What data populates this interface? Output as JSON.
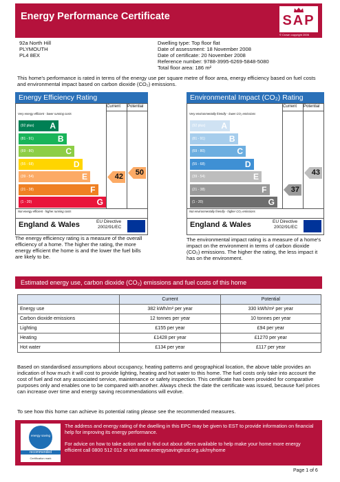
{
  "header": {
    "title": "Energy Performance Certificate",
    "logo": "SAP",
    "copyright": "© Crown copyright 2006"
  },
  "address": [
    "92a North Hill",
    "PLYMOUTH",
    "PL4 8EX"
  ],
  "details": [
    "Dwelling type: Top floor flat",
    "Date of assessment: 18 November 2008",
    "Date of certificate: 20 November 2008",
    "Reference number: 9788-3995-6269-5848-5080",
    "Total floor area: 186 m²"
  ],
  "intro": "This home's performance is rated in terms of the energy use per square metre of floor area, energy efficiency based on fuel costs and environmental impact based on carbon dioxide (CO₂) emissions.",
  "ratings": [
    {
      "title": "Energy Efficiency Rating",
      "col_current": "Current",
      "col_potential": "Potential",
      "top_note": "Very energy efficient - lower running costs",
      "bands": [
        {
          "label": "(92 plus)",
          "letter": "A"
        },
        {
          "label": "(81 - 91)",
          "letter": "B"
        },
        {
          "label": "(69 - 80)",
          "letter": "C"
        },
        {
          "label": "(55 - 68)",
          "letter": "D"
        },
        {
          "label": "(39 - 54)",
          "letter": "E"
        },
        {
          "label": "(21 - 38)",
          "letter": "F"
        },
        {
          "label": "(1 - 20)",
          "letter": "G"
        }
      ],
      "bottom_note": "Not energy efficient - higher running costs",
      "region": "England & Wales",
      "directive": [
        "EU Directive",
        "2002/91/EC"
      ],
      "current": 42,
      "potential": 50,
      "description": "The energy efficiency rating is a measure of the overall efficiency of a home. The higher the rating, the more energy efficient the home is and the lower the fuel bills are likely to be."
    },
    {
      "title": "Environmental Impact (CO₂) Rating",
      "col_current": "Current",
      "col_potential": "Potential",
      "top_note": "Very environmentally friendly - lower CO₂ emissions",
      "bands": [
        {
          "label": "(92 plus)",
          "letter": "A"
        },
        {
          "label": "(81 - 91)",
          "letter": "B"
        },
        {
          "label": "(69 - 80)",
          "letter": "C"
        },
        {
          "label": "(55 - 68)",
          "letter": "D"
        },
        {
          "label": "(39 - 54)",
          "letter": "E"
        },
        {
          "label": "(21 - 38)",
          "letter": "F"
        },
        {
          "label": "(1 - 20)",
          "letter": "G"
        }
      ],
      "bottom_note": "Not environmentally friendly - higher CO₂ emissions",
      "region": "England & Wales",
      "directive": [
        "EU Directive",
        "2002/91/EC"
      ],
      "current": 37,
      "potential": 43,
      "description": "The environmental impact rating is a measure of a home's impact on the environment in terms of carbon dioxide (CO₂) emissions. The higher the rating, the less impact it has on the environment."
    }
  ],
  "costs": {
    "title": "Estimated energy use, carbon dioxide (CO₂) emissions and fuel costs of this home",
    "columns": [
      "Current",
      "Potential"
    ],
    "rows": [
      [
        "Energy use",
        "382 kWh/m² per year",
        "330 kWh/m² per year"
      ],
      [
        "Carbon dioxide emissions",
        "12 tonnes per year",
        "10 tonnes per year"
      ],
      [
        "Lighting",
        "£155 per year",
        "£94 per year"
      ],
      [
        "Heating",
        "£1428 per year",
        "£1270 per year"
      ],
      [
        "Hot water",
        "£134 per year",
        "£117 per year"
      ]
    ]
  },
  "notes": [
    "Based on standardised assumptions about occupancy, heating patterns and geographical location, the above table provides an indication of how much it will cost to provide lighting, heating and hot water to this home. The fuel costs only take into account the cost of fuel and not any associated service, maintenance or safety inspection. This certificate has been provided for comparative purposes only and enables one to be compared with another. Always check the date the certificate was issued, because fuel prices can increase over time and energy saving recommendations will evolve.",
    "To see how this home can achieve its potential rating please see the recommended measures."
  ],
  "footer": {
    "logo": [
      "energy saving",
      "recommended",
      "Certification mark"
    ],
    "text": [
      "The address and energy rating of the dwelling in this EPC may be given to EST to provide information on financial help for improving its energy performance.",
      "For advice on how to take action and to find out about offers available to help make your home more energy efficient call 0800 512 012 or visit www.energysavingtrust.org.uk/myhome"
    ]
  },
  "page": "Page 1 of 6"
}
